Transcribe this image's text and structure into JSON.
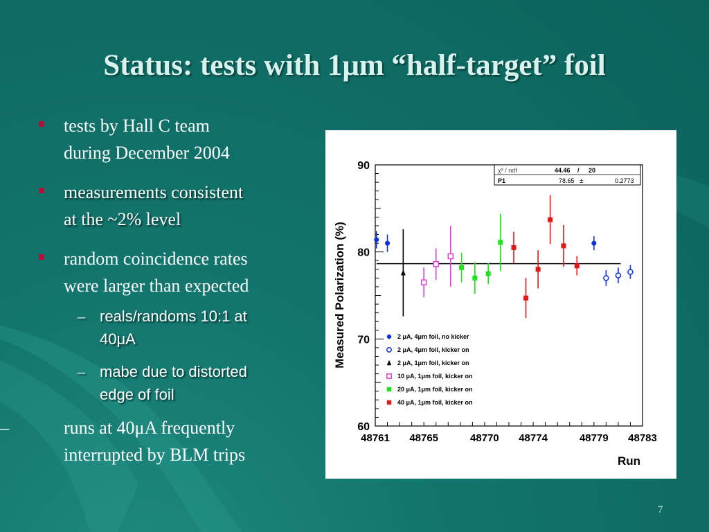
{
  "slide": {
    "title": "Status: tests with 1μm “half-target” foil",
    "page_number": "7",
    "bullets": [
      {
        "text": "tests by Hall C team during December 2004",
        "lines": [
          "tests by Hall C team",
          "during December 2004"
        ]
      },
      {
        "text": "measurements consistent at the ~2% level",
        "lines": [
          "measurements consistent",
          "at the ~2% level"
        ]
      },
      {
        "text": "random coincidence rates were larger than expected",
        "lines": [
          "random coincidence rates",
          "were larger than expected"
        ]
      }
    ],
    "sub_bullets": [
      {
        "lines": [
          "reals/randoms 10:1 at",
          "40μA"
        ]
      },
      {
        "lines": [
          "mabe due to distorted",
          "edge of foil"
        ]
      }
    ],
    "dash_bullet": {
      "lines": [
        "runs at 40μA frequently",
        "interrupted by BLM trips"
      ]
    }
  },
  "colors": {
    "background": "#0e6b64",
    "title": "#d9f2ee",
    "bullet_marker": "#b0123a"
  },
  "chart_data": {
    "type": "scatter",
    "title": "",
    "xlabel": "Run",
    "ylabel": "Measured Polarization (%)",
    "xlim": [
      48761,
      48783
    ],
    "ylim": [
      60,
      90
    ],
    "xticks": [
      "48761",
      "48765",
      "48770",
      "48774",
      "48779",
      "48783"
    ],
    "yticks": [
      "60",
      "70",
      "80",
      "90"
    ],
    "fit_box": {
      "chi_label": "χ² / ndf",
      "chi2": "44.46",
      "sep": "/",
      "ndf": "20",
      "param": "P1",
      "value": "78.65",
      "pm": "±",
      "error": "0.2773"
    },
    "fit_line": {
      "y": 78.65,
      "x_start": 48761.1,
      "x_end": 48781.2
    },
    "series": [
      {
        "name": "2 μA, 4μm foil, no kicker",
        "color": "#1030d8",
        "marker": "circle-filled",
        "x": [
          48761.1,
          48762.0,
          48779.0
        ],
        "y": [
          81.4,
          81.0,
          81.0
        ],
        "err": [
          1.0,
          1.0,
          0.8
        ]
      },
      {
        "name": "2 μA, 4μm foil, kicker on",
        "color": "#1030d8",
        "marker": "circle-open",
        "x": [
          48780.0,
          48781.0,
          48782.0
        ],
        "y": [
          77.0,
          77.3,
          77.7
        ],
        "err": [
          0.9,
          0.9,
          0.8
        ]
      },
      {
        "name": "2 μA, 1μm foil, kicker on",
        "color": "#000000",
        "marker": "triangle",
        "x": [
          48763.3
        ],
        "y": [
          77.6
        ],
        "err": [
          5.0
        ]
      },
      {
        "name": "10 μA, 1μm foil, kicker on",
        "color": "#e040d8",
        "marker": "square-open",
        "x": [
          48765.0,
          48766.0,
          48767.2
        ],
        "y": [
          76.5,
          78.6,
          79.5
        ],
        "err": [
          1.7,
          1.8,
          3.5
        ]
      },
      {
        "name": "20 μA, 1μm foil, kicker on",
        "color": "#20e020",
        "marker": "square-filled",
        "x": [
          48768.1,
          48769.2,
          48770.3,
          48771.3
        ],
        "y": [
          78.2,
          77.0,
          77.5,
          81.1
        ],
        "err": [
          1.7,
          1.8,
          1.2,
          3.3
        ]
      },
      {
        "name": "40 μA, 1μm foil, kicker on",
        "color": "#e01818",
        "marker": "square-filled",
        "x": [
          48772.4,
          48773.4,
          48774.4,
          48775.4,
          48776.5,
          48777.6
        ],
        "y": [
          80.5,
          74.7,
          78.0,
          83.7,
          80.7,
          78.4
        ],
        "err": [
          1.8,
          2.3,
          2.2,
          2.8,
          2.4,
          1.1
        ]
      }
    ],
    "grid": false,
    "legend_position": "bottom-left"
  }
}
